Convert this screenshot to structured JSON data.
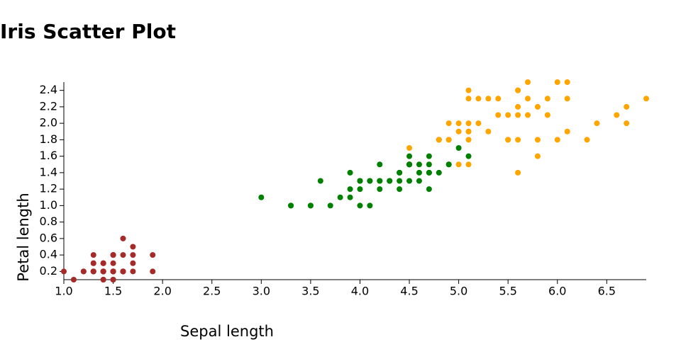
{
  "chart_data": {
    "type": "scatter",
    "title": "Iris Scatter Plot",
    "x_label": "Sepal length",
    "y_label": "Petal length",
    "xlim": [
      1.0,
      6.9
    ],
    "ylim": [
      0.1,
      2.5
    ],
    "xticks": [
      {
        "value": 1,
        "label": "1.0"
      },
      1.5,
      {
        "value": 2,
        "label": "2.0"
      },
      2.5,
      {
        "value": 3,
        "label": "3.0"
      },
      3.5,
      {
        "value": 4,
        "label": "4.0"
      },
      4.5,
      {
        "value": 5,
        "label": "5.0"
      },
      5.5,
      {
        "value": 6,
        "label": "6.0"
      },
      6.5
    ],
    "yticks": [
      0.2,
      0.4,
      0.6,
      0.8,
      {
        "value": 1,
        "label": "1.0"
      },
      1.2,
      1.4,
      1.6,
      1.8,
      {
        "value": 2,
        "label": "2.0"
      },
      2.2,
      2.4
    ],
    "series": [
      {
        "color": "#a52a2a",
        "x": [
          1.4,
          1.4,
          1.3,
          1.5,
          1.4,
          1.7,
          1.4,
          1.5,
          1.4,
          1.5,
          1.5,
          1.6,
          1.4,
          1.1,
          1.2,
          1.5,
          1.3,
          1.4,
          1.7,
          1.5,
          1.7,
          1.5,
          1.0,
          1.7,
          1.9,
          1.6,
          1.6,
          1.5,
          1.4,
          1.6,
          1.6,
          1.5,
          1.5,
          1.4,
          1.5,
          1.2,
          1.3,
          1.4,
          1.3,
          1.5,
          1.3,
          1.3,
          1.3,
          1.6,
          1.9,
          1.4,
          1.6,
          1.4,
          1.5,
          1.4
        ],
        "values": [
          0.2,
          0.2,
          0.2,
          0.2,
          0.2,
          0.4,
          0.3,
          0.2,
          0.2,
          0.1,
          0.2,
          0.2,
          0.1,
          0.1,
          0.2,
          0.4,
          0.4,
          0.3,
          0.3,
          0.3,
          0.2,
          0.4,
          0.2,
          0.5,
          0.2,
          0.2,
          0.4,
          0.2,
          0.2,
          0.2,
          0.2,
          0.4,
          0.1,
          0.2,
          0.2,
          0.2,
          0.2,
          0.1,
          0.2,
          0.2,
          0.3,
          0.3,
          0.2,
          0.6,
          0.4,
          0.3,
          0.2,
          0.2,
          0.2,
          0.2
        ]
      },
      {
        "color": "#008000",
        "x": [
          4.7,
          4.5,
          4.9,
          4.0,
          4.6,
          4.5,
          4.7,
          3.3,
          4.6,
          3.9,
          3.5,
          4.2,
          4.0,
          4.7,
          3.6,
          4.4,
          4.5,
          4.1,
          4.5,
          3.9,
          4.8,
          4.0,
          4.9,
          4.7,
          4.3,
          4.4,
          4.8,
          5.0,
          4.5,
          3.5,
          3.8,
          3.7,
          3.9,
          5.1,
          4.5,
          4.5,
          4.7,
          4.4,
          4.1,
          4.0,
          4.4,
          4.6,
          4.0,
          3.3,
          4.2,
          4.2,
          4.2,
          4.3,
          3.0,
          4.1
        ],
        "values": [
          1.4,
          1.5,
          1.5,
          1.3,
          1.5,
          1.3,
          1.6,
          1.0,
          1.3,
          1.4,
          1.0,
          1.5,
          1.0,
          1.4,
          1.3,
          1.4,
          1.5,
          1.0,
          1.5,
          1.1,
          1.8,
          1.3,
          1.5,
          1.2,
          1.3,
          1.4,
          1.4,
          1.7,
          1.5,
          1.0,
          1.1,
          1.0,
          1.2,
          1.6,
          1.5,
          1.6,
          1.5,
          1.3,
          1.3,
          1.3,
          1.2,
          1.4,
          1.2,
          1.0,
          1.3,
          1.2,
          1.3,
          1.3,
          1.1,
          1.3
        ]
      },
      {
        "color": "#ffa500",
        "x": [
          6.0,
          5.1,
          5.9,
          5.6,
          5.8,
          6.6,
          4.5,
          6.3,
          5.8,
          6.1,
          5.1,
          5.3,
          5.5,
          5.0,
          5.1,
          5.3,
          5.5,
          6.7,
          6.9,
          5.0,
          5.7,
          4.9,
          6.7,
          4.9,
          5.7,
          6.0,
          4.8,
          4.9,
          5.6,
          5.8,
          6.1,
          6.4,
          5.6,
          5.1,
          5.6,
          6.1,
          5.6,
          5.5,
          4.8,
          5.4,
          5.6,
          5.1,
          5.1,
          5.9,
          5.7,
          5.2,
          5.0,
          5.2,
          5.4,
          5.1
        ],
        "values": [
          2.5,
          1.9,
          2.1,
          1.8,
          2.2,
          2.1,
          1.7,
          1.8,
          1.8,
          2.5,
          2.0,
          1.9,
          2.1,
          2.0,
          2.4,
          2.3,
          1.8,
          2.2,
          2.3,
          1.5,
          2.3,
          2.0,
          2.0,
          1.8,
          2.1,
          1.8,
          1.8,
          1.8,
          2.1,
          1.6,
          1.9,
          2.0,
          2.2,
          1.5,
          1.4,
          2.3,
          2.4,
          1.8,
          1.8,
          2.1,
          2.4,
          2.3,
          1.9,
          2.3,
          2.5,
          2.3,
          1.9,
          2.0,
          2.3,
          1.8
        ]
      }
    ]
  }
}
